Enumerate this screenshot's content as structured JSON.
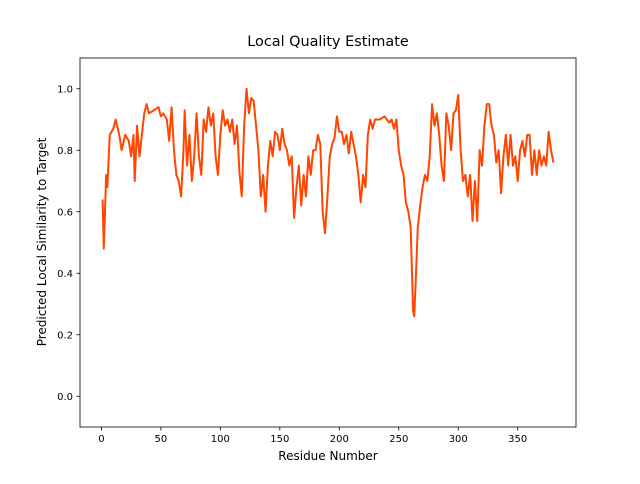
{
  "chart_data": {
    "type": "line",
    "title": "Local Quality Estimate",
    "x_label": "Residue Number",
    "y_label": "Predicted Local Similarity to Target",
    "color": "#ff4500",
    "x": [
      1,
      2,
      4,
      5,
      7,
      10,
      12,
      15,
      17,
      20,
      23,
      25,
      27,
      28,
      30,
      32,
      34,
      36,
      38,
      40,
      44,
      48,
      50,
      52,
      55,
      57,
      59,
      61,
      63,
      65,
      67,
      69,
      70,
      72,
      74,
      76,
      78,
      80,
      82,
      84,
      86,
      88,
      90,
      92,
      94,
      96,
      98,
      100,
      102,
      104,
      106,
      108,
      110,
      112,
      114,
      116,
      118,
      120,
      122,
      124,
      126,
      128,
      130,
      132,
      134,
      136,
      138,
      140,
      142,
      144,
      146,
      148,
      150,
      152,
      154,
      156,
      158,
      160,
      162,
      164,
      166,
      168,
      170,
      172,
      174,
      176,
      178,
      180,
      182,
      184,
      186,
      188,
      190,
      192,
      194,
      196,
      198,
      200,
      202,
      204,
      206,
      208,
      210,
      212,
      214,
      216,
      218,
      220,
      222,
      224,
      226,
      228,
      230,
      234,
      238,
      242,
      244,
      246,
      248,
      250,
      252,
      254,
      256,
      258,
      260,
      262,
      263,
      264,
      266,
      268,
      270,
      272,
      274,
      276,
      278,
      280,
      282,
      284,
      286,
      288,
      290,
      292,
      294,
      296,
      298,
      300,
      302,
      304,
      306,
      308,
      310,
      312,
      314,
      316,
      318,
      320,
      322,
      324,
      326,
      328,
      330,
      332,
      334,
      336,
      338,
      340,
      342,
      344,
      346,
      348,
      350,
      352,
      354,
      356,
      358,
      360,
      362,
      364,
      366,
      368,
      370,
      372,
      374,
      376,
      378,
      380
    ],
    "values": [
      0.64,
      0.48,
      0.72,
      0.68,
      0.85,
      0.87,
      0.9,
      0.85,
      0.8,
      0.85,
      0.83,
      0.78,
      0.85,
      0.7,
      0.88,
      0.78,
      0.85,
      0.92,
      0.95,
      0.92,
      0.93,
      0.94,
      0.91,
      0.92,
      0.9,
      0.83,
      0.94,
      0.8,
      0.72,
      0.7,
      0.65,
      0.8,
      0.93,
      0.75,
      0.85,
      0.7,
      0.78,
      0.92,
      0.78,
      0.72,
      0.9,
      0.86,
      0.94,
      0.88,
      0.92,
      0.78,
      0.72,
      0.85,
      0.93,
      0.88,
      0.9,
      0.86,
      0.9,
      0.82,
      0.88,
      0.73,
      0.65,
      0.88,
      1.0,
      0.92,
      0.97,
      0.96,
      0.88,
      0.8,
      0.65,
      0.72,
      0.6,
      0.75,
      0.83,
      0.78,
      0.86,
      0.85,
      0.8,
      0.87,
      0.82,
      0.8,
      0.75,
      0.78,
      0.58,
      0.68,
      0.75,
      0.62,
      0.72,
      0.65,
      0.78,
      0.72,
      0.8,
      0.8,
      0.85,
      0.82,
      0.6,
      0.53,
      0.65,
      0.78,
      0.82,
      0.84,
      0.91,
      0.86,
      0.86,
      0.82,
      0.85,
      0.79,
      0.86,
      0.82,
      0.78,
      0.72,
      0.63,
      0.72,
      0.68,
      0.85,
      0.9,
      0.87,
      0.9,
      0.9,
      0.91,
      0.89,
      0.9,
      0.87,
      0.9,
      0.8,
      0.75,
      0.72,
      0.63,
      0.6,
      0.55,
      0.28,
      0.26,
      0.35,
      0.55,
      0.62,
      0.68,
      0.72,
      0.7,
      0.78,
      0.95,
      0.88,
      0.92,
      0.85,
      0.75,
      0.7,
      0.92,
      0.88,
      0.8,
      0.92,
      0.93,
      0.98,
      0.8,
      0.7,
      0.72,
      0.65,
      0.72,
      0.57,
      0.7,
      0.57,
      0.8,
      0.75,
      0.88,
      0.95,
      0.95,
      0.88,
      0.85,
      0.76,
      0.8,
      0.66,
      0.78,
      0.85,
      0.75,
      0.85,
      0.75,
      0.78,
      0.7,
      0.8,
      0.83,
      0.78,
      0.85,
      0.85,
      0.72,
      0.8,
      0.72,
      0.8,
      0.75,
      0.78,
      0.75,
      0.86,
      0.8,
      0.76
    ],
    "xlim": [
      -18,
      399
    ],
    "ylim": [
      -0.1,
      1.1
    ],
    "xticks": [
      0,
      50,
      100,
      150,
      200,
      250,
      300,
      350
    ],
    "yticks": [
      {
        "value": 0,
        "label": "0.0"
      },
      {
        "value": 0.2,
        "label": "0.2"
      },
      {
        "value": 0.4,
        "label": "0.4"
      },
      {
        "value": 0.6,
        "label": "0.6"
      },
      {
        "value": 0.8,
        "label": "0.8"
      },
      {
        "value": 1.0,
        "label": "1.0"
      }
    ]
  }
}
